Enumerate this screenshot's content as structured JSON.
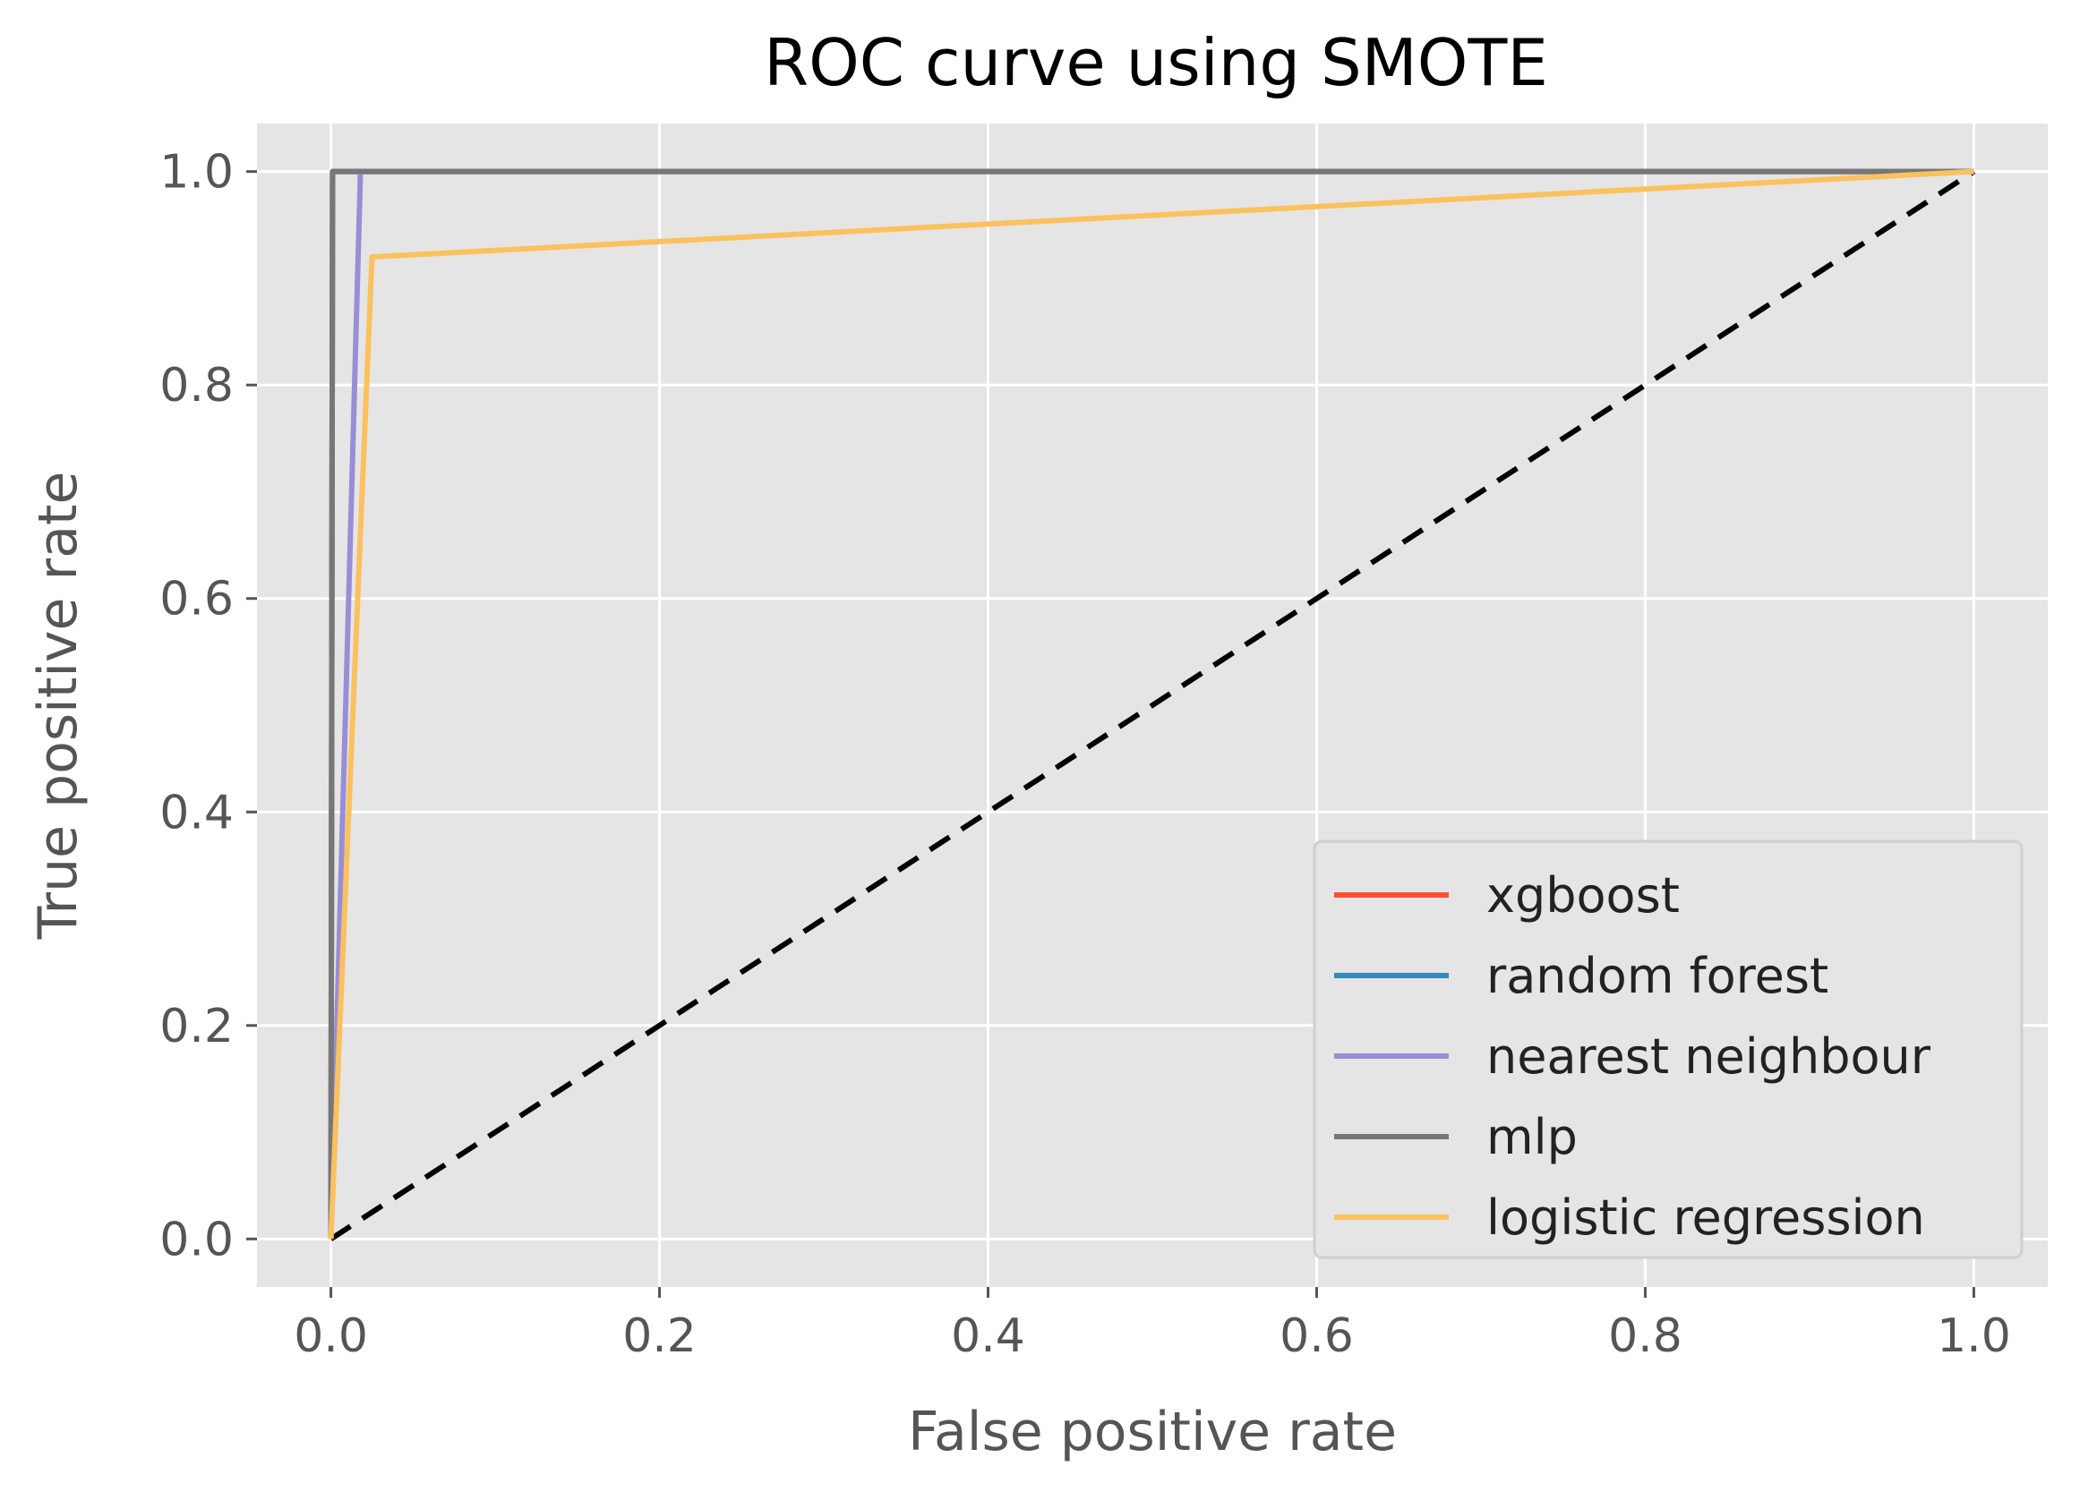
{
  "chart_data": {
    "type": "line",
    "title": "ROC curve using SMOTE",
    "xlabel": "False positive rate",
    "ylabel": "True positive rate",
    "xlim": [
      -0.045,
      1.045
    ],
    "ylim": [
      -0.045,
      1.045
    ],
    "grid": true,
    "legend_position": "lower-right",
    "xticks": [
      0.0,
      0.2,
      0.4,
      0.6,
      0.8,
      1.0
    ],
    "yticks": [
      0.0,
      0.2,
      0.4,
      0.6,
      0.8,
      1.0
    ],
    "xtick_labels": [
      "0.0",
      "0.2",
      "0.4",
      "0.6",
      "0.8",
      "1.0"
    ],
    "ytick_labels": [
      "0.0",
      "0.2",
      "0.4",
      "0.6",
      "0.8",
      "1.0"
    ],
    "series": [
      {
        "name": "xgboost",
        "color": "#FC4F30",
        "x": [
          0.0,
          0.001,
          1.0
        ],
        "y": [
          0.0,
          1.0,
          1.0
        ]
      },
      {
        "name": "random forest",
        "color": "#348ABD",
        "x": [
          0.0,
          0.001,
          1.0
        ],
        "y": [
          0.0,
          1.0,
          1.0
        ]
      },
      {
        "name": "nearest neighbour",
        "color": "#988ED5",
        "x": [
          0.0,
          0.018,
          1.0
        ],
        "y": [
          0.0,
          1.0,
          1.0
        ]
      },
      {
        "name": "mlp",
        "color": "#777777",
        "x": [
          0.0,
          0.001,
          1.0
        ],
        "y": [
          0.0,
          1.0,
          1.0
        ]
      },
      {
        "name": "logistic regression",
        "color": "#FBC15E",
        "x": [
          0.0,
          0.025,
          1.0
        ],
        "y": [
          0.0,
          0.92,
          1.0
        ]
      }
    ],
    "reference_line": {
      "x": [
        0.0,
        1.0
      ],
      "y": [
        0.0,
        1.0
      ],
      "color": "#000000",
      "style": "dashed"
    }
  }
}
